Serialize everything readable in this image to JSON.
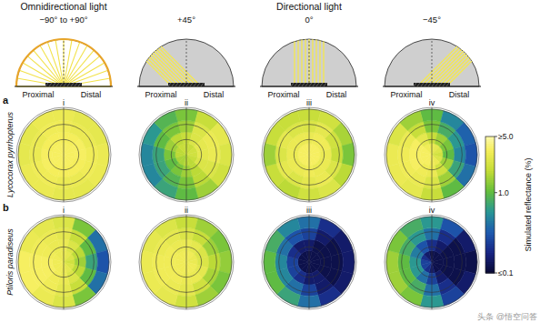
{
  "chart_data": {
    "type": "polar_heatmap",
    "groups": [
      {
        "title": "Omnidirectional light",
        "columns": [
          0
        ]
      },
      {
        "title": "Directional light",
        "columns": [
          1,
          2,
          3
        ]
      }
    ],
    "illumination": [
      {
        "mode": "omnidirectional",
        "range": [
          -90,
          90
        ],
        "label": "−90° to +90°"
      },
      {
        "mode": "directional",
        "range": [
          45,
          45
        ],
        "label": "+45°"
      },
      {
        "mode": "directional",
        "range": [
          0,
          0
        ],
        "label": "0°"
      },
      {
        "mode": "directional",
        "range": [
          -45,
          -45
        ],
        "label": "−45°"
      }
    ],
    "proximal_label": "Proximal",
    "distal_label": "Distal",
    "panel_labels": [
      "i",
      "ii",
      "iii",
      "iv"
    ],
    "rows": [
      {
        "letter": "a",
        "species": "Lycocorax pyrrhopterus",
        "panels": [
          [
            [
              3.5,
              3.5,
              3.5,
              3.5,
              3.5,
              3.5,
              3.5,
              3.5,
              3.5,
              3.5,
              3.5,
              3.5
            ],
            [
              3.4,
              3.4,
              3.5,
              3.5,
              3.4,
              3.4,
              3.4,
              3.4,
              3.5,
              3.5,
              3.4,
              3.4
            ],
            [
              3.2,
              3.0,
              3.0,
              3.2,
              3.2,
              3.0,
              3.0,
              3.2,
              3.2,
              3.0,
              3.0,
              3.2
            ],
            [
              3.0,
              2.8,
              2.8,
              3.0,
              3.0,
              2.8,
              2.8,
              3.0,
              3.0,
              2.8,
              2.8,
              3.0
            ]
          ],
          [
            [
              2.0,
              2.0,
              2.2,
              2.2,
              2.0,
              1.8,
              1.8,
              1.6,
              1.6,
              1.8,
              1.8,
              2.0
            ],
            [
              2.0,
              2.5,
              2.8,
              2.8,
              2.5,
              1.8,
              1.5,
              1.2,
              1.0,
              1.2,
              1.5,
              1.8
            ],
            [
              1.5,
              2.5,
              3.0,
              3.0,
              2.5,
              1.8,
              1.2,
              0.9,
              0.7,
              0.7,
              1.0,
              1.2
            ],
            [
              1.2,
              2.0,
              2.8,
              2.5,
              2.2,
              1.5,
              1.0,
              0.7,
              0.5,
              0.5,
              0.6,
              0.9
            ]
          ],
          [
            [
              3.5,
              3.5,
              3.5,
              3.5,
              3.5,
              3.5,
              3.5,
              3.5,
              3.5,
              3.5,
              3.5,
              3.5
            ],
            [
              3.0,
              3.2,
              3.2,
              3.0,
              3.0,
              3.0,
              3.2,
              3.0,
              3.0,
              3.0,
              3.0,
              3.0
            ],
            [
              2.5,
              2.8,
              2.2,
              2.0,
              2.5,
              3.0,
              2.8,
              2.5,
              2.8,
              2.5,
              2.8,
              2.5
            ],
            [
              2.0,
              2.2,
              1.6,
              1.2,
              1.8,
              2.5,
              2.2,
              1.8,
              2.0,
              1.5,
              2.0,
              2.0
            ]
          ],
          [
            [
              3.0,
              2.8,
              2.5,
              2.2,
              2.5,
              3.0,
              3.2,
              3.5,
              3.5,
              3.5,
              3.5,
              3.2
            ],
            [
              2.0,
              1.5,
              1.2,
              1.0,
              1.5,
              2.2,
              3.0,
              3.2,
              3.5,
              3.5,
              3.5,
              2.8
            ],
            [
              1.2,
              0.8,
              0.6,
              0.5,
              0.7,
              1.5,
              2.5,
              3.0,
              3.2,
              3.2,
              3.0,
              2.0
            ],
            [
              1.0,
              0.5,
              0.35,
              0.3,
              0.4,
              1.0,
              2.0,
              2.8,
              3.0,
              3.0,
              2.5,
              1.5
            ]
          ]
        ]
      },
      {
        "letter": "b",
        "species": "Ptiloris paradiseus",
        "panels": [
          [
            [
              3.0,
              2.8,
              2.5,
              2.2,
              2.5,
              2.8,
              3.0,
              3.2,
              3.2,
              3.2,
              3.2,
              3.0
            ],
            [
              3.0,
              2.5,
              1.8,
              1.5,
              1.8,
              2.5,
              3.0,
              3.2,
              3.5,
              3.5,
              3.2,
              3.0
            ],
            [
              2.8,
              2.0,
              1.0,
              0.7,
              1.0,
              2.0,
              2.8,
              3.2,
              3.5,
              3.5,
              3.2,
              3.0
            ],
            [
              2.5,
              1.2,
              0.4,
              0.3,
              0.4,
              1.2,
              2.5,
              3.0,
              3.5,
              3.5,
              3.0,
              2.8
            ]
          ],
          [
            [
              3.2,
              3.2,
              3.0,
              3.0,
              3.2,
              3.2,
              3.2,
              3.2,
              3.2,
              3.2,
              3.2,
              3.2
            ],
            [
              3.0,
              2.8,
              2.5,
              2.5,
              2.8,
              3.0,
              3.0,
              3.2,
              3.2,
              3.2,
              3.2,
              3.0
            ],
            [
              2.5,
              2.0,
              1.5,
              1.8,
              1.6,
              2.2,
              2.8,
              3.0,
              3.2,
              3.2,
              3.0,
              2.8
            ],
            [
              2.0,
              1.5,
              1.2,
              1.4,
              1.2,
              1.5,
              2.2,
              2.8,
              3.0,
              3.0,
              2.8,
              2.5
            ]
          ],
          [
            [
              0.12,
              0.12,
              0.12,
              0.12,
              0.12,
              0.12,
              0.12,
              0.12,
              0.12,
              0.12,
              0.12,
              0.12
            ],
            [
              0.15,
              0.12,
              0.12,
              0.12,
              0.12,
              0.15,
              0.15,
              0.2,
              0.25,
              0.25,
              0.2,
              0.15
            ],
            [
              0.25,
              0.15,
              0.12,
              0.12,
              0.12,
              0.15,
              0.25,
              0.4,
              0.5,
              0.5,
              0.4,
              0.3
            ],
            [
              0.4,
              0.2,
              0.15,
              0.15,
              0.15,
              0.2,
              0.4,
              0.7,
              1.0,
              1.0,
              0.8,
              0.5
            ]
          ],
          [
            [
              0.12,
              0.12,
              0.12,
              0.12,
              0.12,
              0.12,
              0.15,
              0.2,
              0.25,
              0.25,
              0.2,
              0.15
            ],
            [
              0.2,
              0.15,
              0.12,
              0.12,
              0.12,
              0.15,
              0.25,
              0.4,
              0.6,
              0.6,
              0.45,
              0.3
            ],
            [
              0.4,
              0.2,
              0.12,
              0.12,
              0.12,
              0.2,
              0.4,
              0.8,
              1.0,
              1.0,
              0.8,
              0.6
            ],
            [
              0.6,
              0.3,
              0.15,
              0.12,
              0.15,
              0.25,
              0.6,
              1.2,
              1.5,
              1.5,
              1.2,
              0.8
            ]
          ]
        ]
      }
    ],
    "colorbar": {
      "label": "Simulated reflectance (%)",
      "range": [
        0.1,
        5
      ],
      "log": true,
      "ticks": [
        {
          "value": 5,
          "label": "≥5.0"
        },
        {
          "value": 1,
          "label": "1.0"
        },
        {
          "value": 0.1,
          "label": "≤0.1"
        }
      ]
    },
    "watermark": "头条 @悟空问答"
  }
}
